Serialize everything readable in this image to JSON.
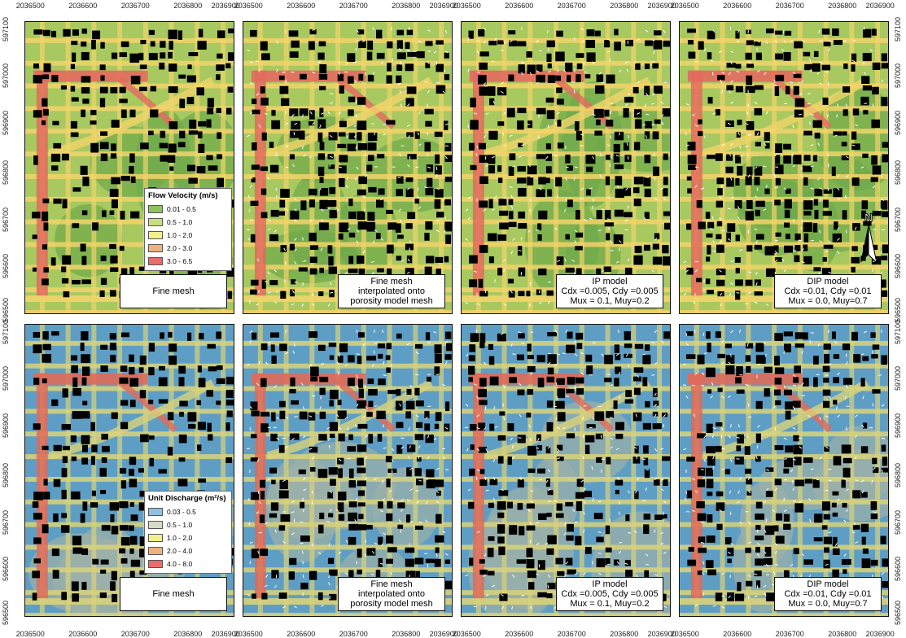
{
  "x_ticks": [
    "2036500",
    "2036600",
    "2036700",
    "2036800",
    "2036900"
  ],
  "y_ticks_top": [
    "597100",
    "597000",
    "596900",
    "596800",
    "596700",
    "596600",
    "596500"
  ],
  "y_ticks_bottom": [
    "597100",
    "597000",
    "596900",
    "596800",
    "596700",
    "596600",
    "596500"
  ],
  "legends": {
    "velocity": {
      "title": "Flow Velocity (m/s)",
      "items": [
        {
          "label": "0.01 - 0.5",
          "color": "#8fc45a"
        },
        {
          "label": "0.5 - 1.0",
          "color": "#c8e07a"
        },
        {
          "label": "1.0 - 2.0",
          "color": "#f3ef8a"
        },
        {
          "label": "2.0 - 3.0",
          "color": "#f0b27a"
        },
        {
          "label": "3.0 - 6.5",
          "color": "#ea6b6b"
        }
      ]
    },
    "discharge": {
      "title": "Unit Discharge (m²/s)",
      "items": [
        {
          "label": "0.03 - 0.5",
          "color": "#8fc0e0"
        },
        {
          "label": "0.5 - 1.0",
          "color": "#d4dcc8"
        },
        {
          "label": "1.0 - 2.0",
          "color": "#f3ef8a"
        },
        {
          "label": "2.0 - 4.0",
          "color": "#f0b27a"
        },
        {
          "label": "4.0 - 8.0",
          "color": "#ea6b6b"
        }
      ]
    }
  },
  "panels": [
    {
      "row": 0,
      "col": 0,
      "label": [
        "Fine mesh"
      ]
    },
    {
      "row": 0,
      "col": 1,
      "label": [
        "Fine mesh",
        "interpolated onto",
        "porosity model mesh"
      ]
    },
    {
      "row": 0,
      "col": 2,
      "label": [
        "IP model",
        "Cdx =0.005, Cdy =0.005",
        "Mux = 0.1, Muy=0.2"
      ]
    },
    {
      "row": 0,
      "col": 3,
      "label": [
        "DIP model",
        "Cdx =0.01, Cdy =0.01",
        "Mux = 0.0, Muy=0.7"
      ]
    },
    {
      "row": 1,
      "col": 0,
      "label": [
        "Fine mesh"
      ]
    },
    {
      "row": 1,
      "col": 1,
      "label": [
        "Fine mesh",
        "interpolated onto",
        "porosity model mesh"
      ]
    },
    {
      "row": 1,
      "col": 2,
      "label": [
        "IP model",
        "Cdx =0.005, Cdy =0.005",
        "Mux = 0.1, Muy=0.2"
      ]
    },
    {
      "row": 1,
      "col": 3,
      "label": [
        "DIP model",
        "Cdx =0.01, Cdy =0.01",
        "Mux = 0.0, Muy=0.7"
      ]
    }
  ],
  "north_label": "N",
  "palettes": {
    "velocity": {
      "base": "#a8c860",
      "street": "#f1d46a",
      "main": "#e36a5f",
      "low": "#6fa84a"
    },
    "discharge": {
      "base": "#5f9ec4",
      "street": "#d8d27a",
      "main": "#e06a5a",
      "low": "#9db0a8"
    }
  }
}
